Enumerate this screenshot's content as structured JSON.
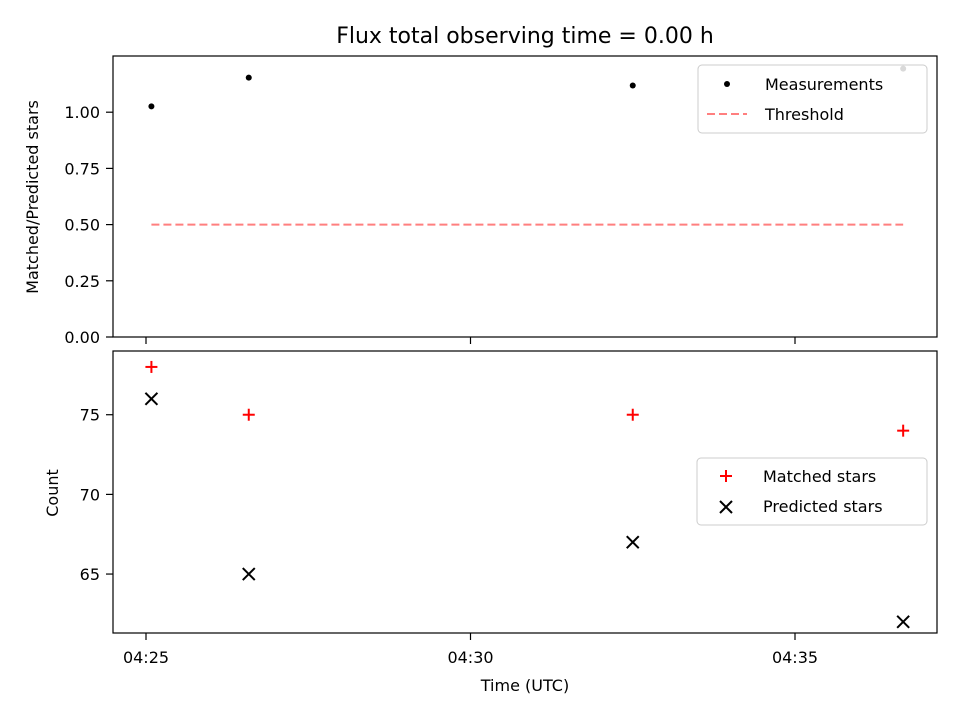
{
  "chart_data": [
    {
      "type": "scatter",
      "title": "Flux total observing time = 0.00 h",
      "xlabel": "",
      "ylabel": "Matched/Predicted stars",
      "x_times": [
        "04:25:05",
        "04:26:35",
        "04:32:30",
        "04:36:40"
      ],
      "ylim": [
        0,
        1.25
      ],
      "yticks": [
        "0.00",
        "0.25",
        "0.50",
        "0.75",
        "1.00"
      ],
      "legend_position": "upper right",
      "series": [
        {
          "name": "Measurements",
          "marker": "dot",
          "color": "#000000",
          "values": [
            1.026,
            1.154,
            1.119,
            1.194
          ]
        },
        {
          "name": "Threshold",
          "style": "dashed line",
          "color": "#ff7f7f",
          "values": [
            0.5,
            0.5,
            0.5,
            0.5
          ]
        }
      ]
    },
    {
      "type": "scatter",
      "title": "",
      "xlabel": "Time (UTC)",
      "ylabel": "Count",
      "x_times": [
        "04:25:05",
        "04:26:35",
        "04:32:30",
        "04:36:40"
      ],
      "xticks": [
        "04:25",
        "04:30",
        "04:35"
      ],
      "ylim": [
        61.3,
        79.0
      ],
      "yticks": [
        "65",
        "70",
        "75"
      ],
      "legend_position": "center right",
      "series": [
        {
          "name": "Matched stars",
          "marker": "+",
          "color": "#ff0000",
          "values": [
            78,
            75,
            75,
            74
          ]
        },
        {
          "name": "Predicted stars",
          "marker": "x",
          "color": "#000000",
          "values": [
            76,
            65,
            67,
            62
          ]
        }
      ]
    }
  ]
}
